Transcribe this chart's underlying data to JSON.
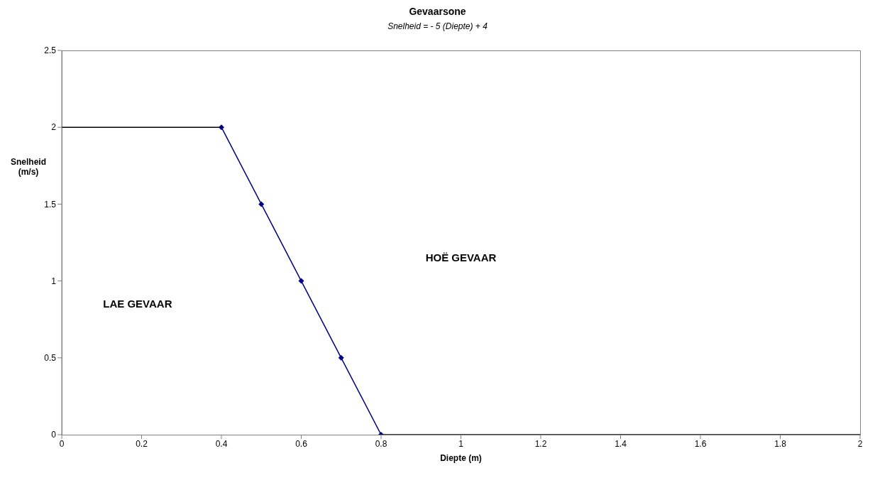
{
  "chart_data": {
    "type": "line",
    "title": "Gevaarsone",
    "subtitle": "Snelheid = - 5 (Diepte) + 4",
    "xlabel": "Diepte (m)",
    "ylabel": "Snelheid (m/s)",
    "xlim": [
      0,
      2
    ],
    "xticks": [
      0,
      0.2,
      0.4,
      0.6,
      0.8,
      1,
      1.2,
      1.4,
      1.6,
      1.8,
      2
    ],
    "ylim": [
      0,
      2.5
    ],
    "yticks": [
      0,
      0.5,
      1,
      1.5,
      2,
      2.5
    ],
    "line_style": "solid",
    "series": [
      {
        "x": [
          0,
          0.4
        ],
        "values": [
          2,
          2
        ],
        "color": "#000000",
        "marker": "none"
      },
      {
        "x": [
          0.4,
          0.5,
          0.6,
          0.7,
          0.8
        ],
        "values": [
          2,
          1.5,
          1,
          0.5,
          0
        ],
        "color": "#000080",
        "marker": "diamond"
      },
      {
        "x": [
          0.8,
          2
        ],
        "values": [
          0,
          0
        ],
        "color": "#000000",
        "marker": "none"
      }
    ],
    "annotations": [
      "LAE GEVAAR",
      "HOË GEVAAR"
    ]
  }
}
